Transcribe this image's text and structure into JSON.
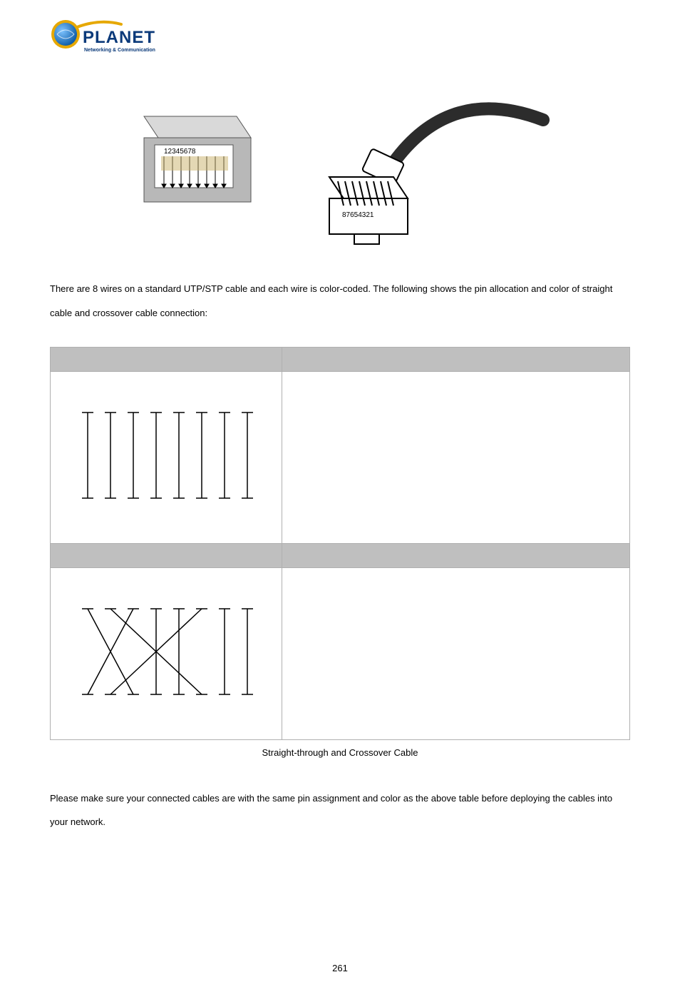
{
  "logo": {
    "brand": "PLANET",
    "tagline": "Networking & Communication"
  },
  "rj45_jack": {
    "pin_labels": "12345678",
    "body_color": "#b8b8b8",
    "top_color": "#d9d9d9",
    "contact_color": "#8a7a3a"
  },
  "rj45_plug": {
    "pin_labels": "87654321",
    "cable_color": "#3a3a3a",
    "body_outline": "#000000",
    "body_fill": "#ffffff"
  },
  "paragraph1": "There are 8 wires on a standard UTP/STP cable and each wire is color-coded. The following shows the pin allocation and color of straight cable and crossover cable connection:",
  "table": {
    "border_color": "#b0b0b0",
    "header_bg": "#bfbfbf",
    "rows": [
      {
        "header_left": "",
        "header_right": "",
        "diagram_type": "straight",
        "wire_count": 8,
        "line_color": "#000000"
      },
      {
        "header_left": "",
        "header_right": "",
        "diagram_type": "crossover",
        "wire_count": 8,
        "line_color": "#000000",
        "cross_pairs": [
          [
            1,
            3
          ],
          [
            2,
            6
          ],
          [
            3,
            1
          ],
          [
            6,
            2
          ]
        ]
      }
    ]
  },
  "caption": "Straight-through and Crossover Cable",
  "paragraph2": "Please make sure your connected cables are with the same pin assignment and color as the above table before deploying the cables into your network.",
  "page_number": "261"
}
